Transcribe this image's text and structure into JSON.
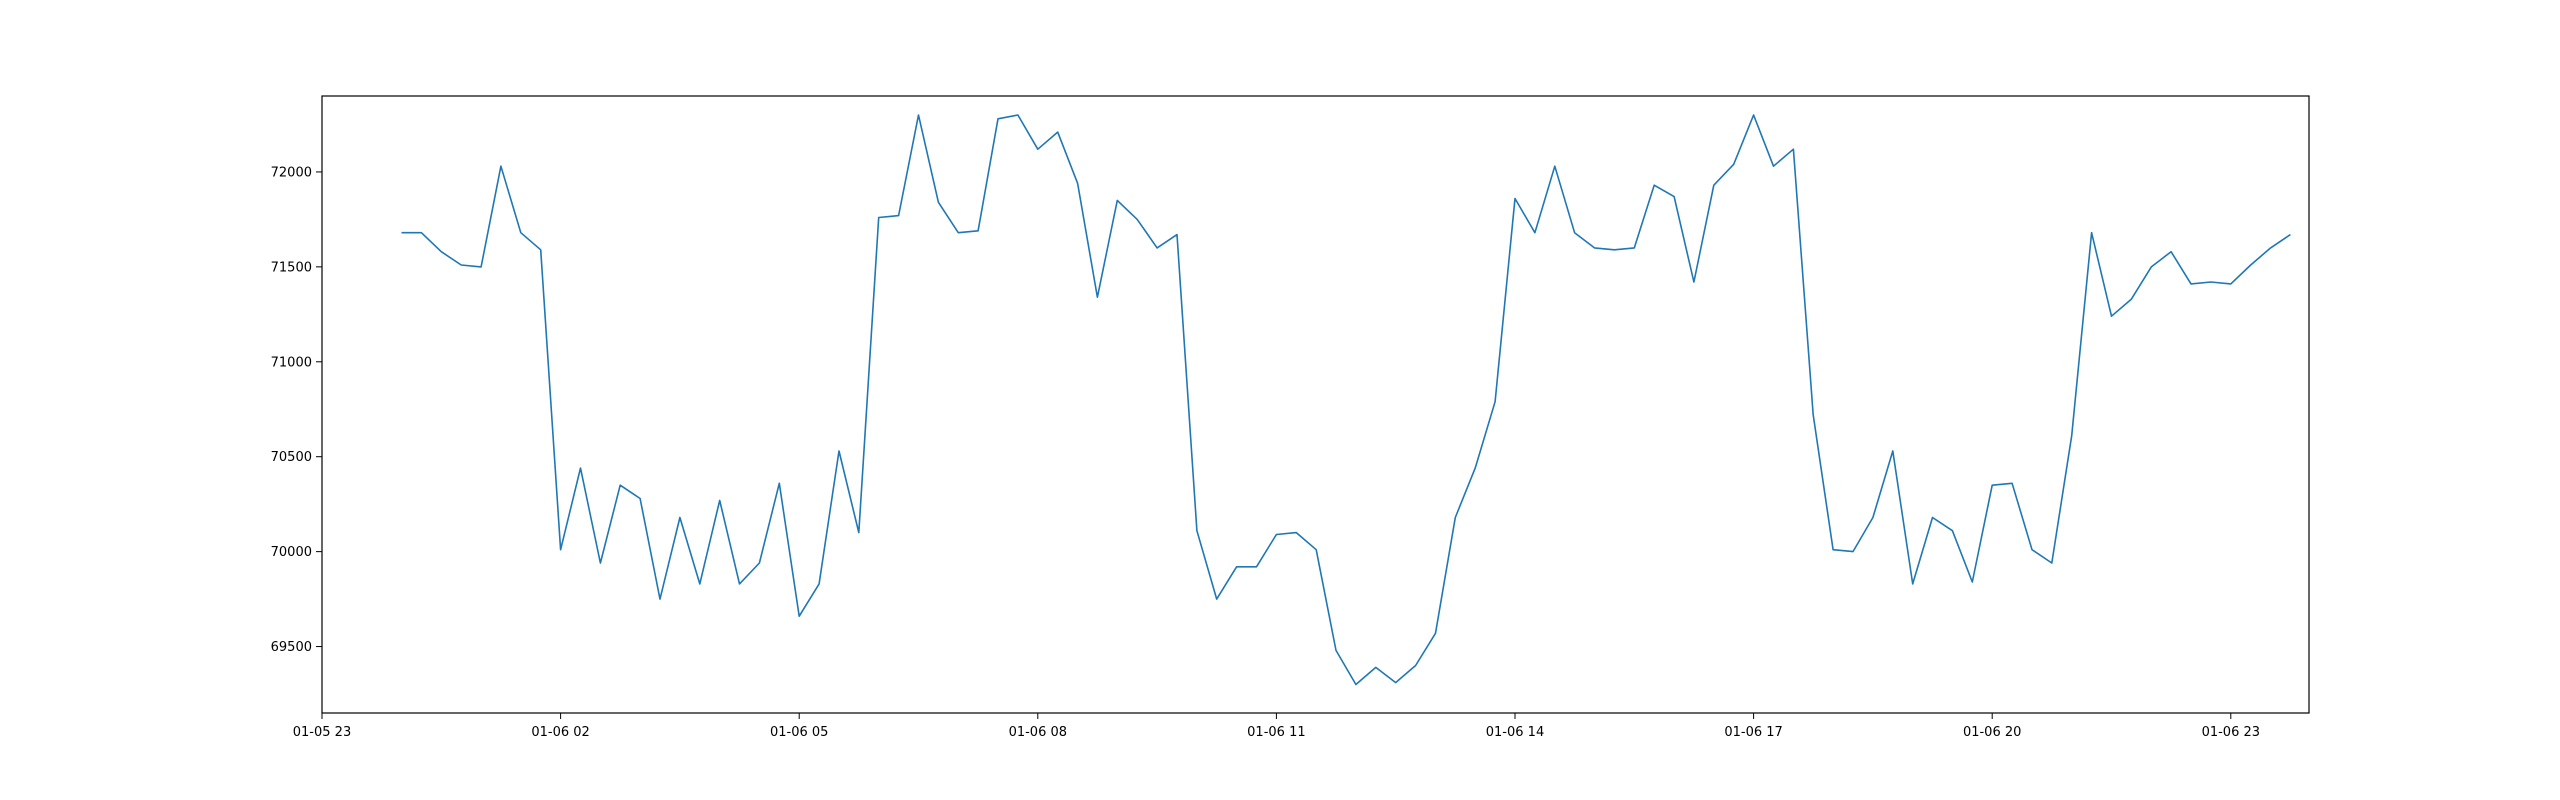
{
  "chart_data": {
    "type": "line",
    "title": "",
    "xlabel": "",
    "ylabel": "",
    "grid": false,
    "legend": "none",
    "series_color": "#1f77b4",
    "xlim": [
      "01-05 23:00",
      "01-06 23:59"
    ],
    "ylim": [
      69150,
      72400
    ],
    "x_ticks": [
      "01-05 23",
      "01-06 02",
      "01-06 05",
      "01-06 08",
      "01-06 11",
      "01-06 14",
      "01-06 17",
      "01-06 20",
      "01-06 23"
    ],
    "y_ticks": [
      69500,
      70000,
      70500,
      71000,
      71500,
      72000
    ],
    "series": [
      {
        "x": [
          "01-06 00:00",
          "01-06 00:15",
          "01-06 00:30",
          "01-06 00:45",
          "01-06 01:00",
          "01-06 01:15",
          "01-06 01:30",
          "01-06 01:45",
          "01-06 02:00",
          "01-06 02:15",
          "01-06 02:30",
          "01-06 02:45",
          "01-06 03:00",
          "01-06 03:15",
          "01-06 03:30",
          "01-06 03:45",
          "01-06 04:00",
          "01-06 04:15",
          "01-06 04:30",
          "01-06 04:45",
          "01-06 05:00",
          "01-06 05:15",
          "01-06 05:30",
          "01-06 05:45",
          "01-06 06:00",
          "01-06 06:15",
          "01-06 06:30",
          "01-06 06:45",
          "01-06 07:00",
          "01-06 07:15",
          "01-06 07:30",
          "01-06 07:45",
          "01-06 08:00",
          "01-06 08:15",
          "01-06 08:30",
          "01-06 08:45",
          "01-06 09:00",
          "01-06 09:15",
          "01-06 09:30",
          "01-06 09:45",
          "01-06 10:00",
          "01-06 10:15",
          "01-06 10:30",
          "01-06 10:45",
          "01-06 11:00",
          "01-06 11:15",
          "01-06 11:30",
          "01-06 11:45",
          "01-06 12:00",
          "01-06 12:15",
          "01-06 12:30",
          "01-06 12:45",
          "01-06 13:00",
          "01-06 13:15",
          "01-06 13:30",
          "01-06 13:45",
          "01-06 14:00",
          "01-06 14:15",
          "01-06 14:30",
          "01-06 14:45",
          "01-06 15:00",
          "01-06 15:15",
          "01-06 15:30",
          "01-06 15:45",
          "01-06 16:00",
          "01-06 16:15",
          "01-06 16:30",
          "01-06 16:45",
          "01-06 17:00",
          "01-06 17:15",
          "01-06 17:30",
          "01-06 17:45",
          "01-06 18:00",
          "01-06 18:15",
          "01-06 18:30",
          "01-06 18:45",
          "01-06 19:00",
          "01-06 19:15",
          "01-06 19:30",
          "01-06 19:45",
          "01-06 20:00",
          "01-06 20:15",
          "01-06 20:30",
          "01-06 20:45",
          "01-06 21:00",
          "01-06 21:15",
          "01-06 21:30",
          "01-06 21:45",
          "01-06 22:00",
          "01-06 22:15",
          "01-06 22:30",
          "01-06 22:45",
          "01-06 23:00",
          "01-06 23:15",
          "01-06 23:30",
          "01-06 23:45"
        ],
        "values": [
          71680,
          71680,
          71580,
          71510,
          71500,
          72030,
          71680,
          71590,
          70010,
          70440,
          69940,
          70350,
          70280,
          69750,
          70180,
          69830,
          70270,
          69830,
          69940,
          70360,
          69660,
          69830,
          70530,
          70100,
          71760,
          71770,
          72300,
          71840,
          71680,
          71690,
          72280,
          72300,
          72120,
          72210,
          71940,
          71340,
          71850,
          71750,
          71600,
          71670,
          70110,
          69750,
          69920,
          69920,
          70090,
          70100,
          70010,
          69480,
          69300,
          69390,
          69310,
          69400,
          69570,
          70180,
          70440,
          70790,
          71860,
          71680,
          72030,
          71680,
          71600,
          71590,
          71600,
          71930,
          71870,
          71420,
          71930,
          72040,
          72300,
          72030,
          72120,
          70720,
          70010,
          70000,
          70180,
          70530,
          69830,
          70180,
          70110,
          69840,
          70350,
          70360,
          70010,
          69940,
          70610,
          71680,
          71240,
          71330,
          71500,
          71580,
          71410,
          71420,
          71410,
          71510,
          71600,
          71670
        ]
      }
    ]
  }
}
